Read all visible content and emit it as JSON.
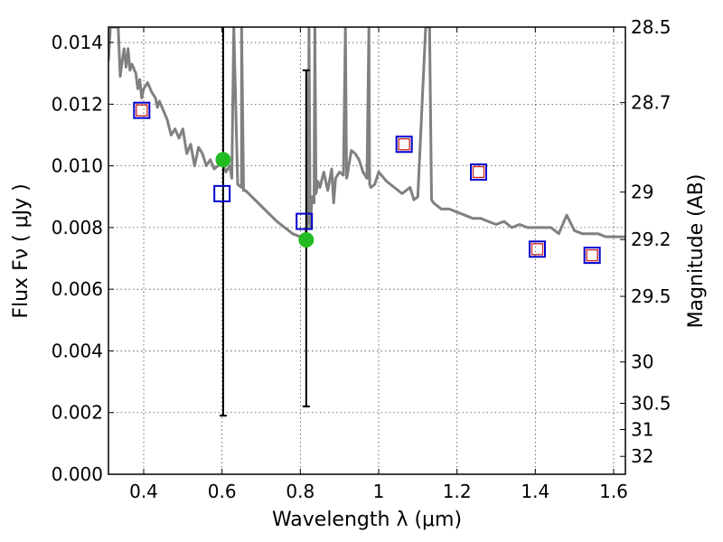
{
  "chart_data": {
    "type": "scatter",
    "title": "",
    "xlabel": "Wavelength  λ (μm)",
    "ylabel": "Flux  Fν  ( μJy )",
    "y2label": "Magnitude (AB)",
    "xlim": [
      0.31,
      1.63
    ],
    "ylim": [
      0.0,
      0.0145
    ],
    "grid": true,
    "x_ticks": [
      0.4,
      0.6,
      0.8,
      1.0,
      1.2,
      1.4,
      1.6
    ],
    "x_tick_labels": [
      "0.4",
      "0.6",
      "0.8",
      "1",
      "1.2",
      "1.4",
      "1.6"
    ],
    "y_ticks": [
      0.0,
      0.002,
      0.004,
      0.006,
      0.008,
      0.01,
      0.012,
      0.014
    ],
    "y_tick_labels": [
      "0.000",
      "0.002",
      "0.004",
      "0.006",
      "0.008",
      "0.010",
      "0.012",
      "0.014"
    ],
    "y2_ticks": [
      {
        "label": "28.5",
        "flux": 0.0145
      },
      {
        "label": "28.7",
        "flux": 0.01205
      },
      {
        "label": "29",
        "flux": 0.00915
      },
      {
        "label": "29.2",
        "flux": 0.00761
      },
      {
        "label": "29.5",
        "flux": 0.00577
      },
      {
        "label": "30",
        "flux": 0.00364
      },
      {
        "label": "30.5",
        "flux": 0.0023
      },
      {
        "label": "31",
        "flux": 0.00145
      },
      {
        "label": "32",
        "flux": 0.00058
      }
    ],
    "series": [
      {
        "name": "model SED",
        "kind": "line",
        "color": "#808080",
        "x": [
          0.31,
          0.315,
          0.32,
          0.325,
          0.33,
          0.335,
          0.34,
          0.345,
          0.35,
          0.355,
          0.36,
          0.365,
          0.37,
          0.38,
          0.385,
          0.39,
          0.395,
          0.4,
          0.41,
          0.42,
          0.43,
          0.435,
          0.44,
          0.45,
          0.46,
          0.47,
          0.48,
          0.49,
          0.5,
          0.51,
          0.52,
          0.53,
          0.54,
          0.55,
          0.56,
          0.57,
          0.58,
          0.59,
          0.6,
          0.61,
          0.62,
          0.625,
          0.63,
          0.64,
          0.65,
          0.65,
          0.655,
          0.66,
          0.7,
          0.74,
          0.78,
          0.8,
          0.81,
          0.815,
          0.82,
          0.822,
          0.825,
          0.83,
          0.835,
          0.837,
          0.84,
          0.845,
          0.85,
          0.86,
          0.87,
          0.88,
          0.885,
          0.89,
          0.9,
          0.91,
          0.915,
          0.918,
          0.92,
          0.93,
          0.94,
          0.95,
          0.96,
          0.97,
          0.975,
          0.977,
          0.98,
          0.99,
          1.0,
          1.02,
          1.04,
          1.06,
          1.08,
          1.09,
          1.1,
          1.12,
          1.13,
          1.135,
          1.14,
          1.16,
          1.18,
          1.2,
          1.22,
          1.24,
          1.26,
          1.28,
          1.3,
          1.32,
          1.34,
          1.36,
          1.38,
          1.4,
          1.42,
          1.44,
          1.46,
          1.48,
          1.5,
          1.52,
          1.54,
          1.56,
          1.58,
          1.6,
          1.63
        ],
        "y": [
          0.0134,
          0.0148,
          0.0145,
          0.0152,
          0.0145,
          0.0148,
          0.0129,
          0.0134,
          0.0138,
          0.0132,
          0.0138,
          0.0131,
          0.0133,
          0.013,
          0.0125,
          0.0128,
          0.0122,
          0.0125,
          0.0127,
          0.0124,
          0.0122,
          0.0119,
          0.0121,
          0.0118,
          0.0115,
          0.011,
          0.0112,
          0.0109,
          0.0112,
          0.0104,
          0.0107,
          0.01,
          0.0106,
          0.0104,
          0.01,
          0.0102,
          0.0099,
          0.01,
          0.0102,
          0.0098,
          0.01,
          0.0096,
          0.015,
          0.0094,
          0.0093,
          0.015,
          0.0092,
          0.0092,
          0.0087,
          0.0082,
          0.0078,
          0.0077,
          0.0076,
          0.0079,
          0.0083,
          0.015,
          0.008,
          0.009,
          0.0088,
          0.015,
          0.0091,
          0.0095,
          0.0093,
          0.0098,
          0.0092,
          0.0099,
          0.0088,
          0.0096,
          0.0098,
          0.0097,
          0.015,
          0.0096,
          0.0097,
          0.0105,
          0.0104,
          0.0102,
          0.0098,
          0.0096,
          0.015,
          0.0094,
          0.0093,
          0.0094,
          0.0098,
          0.0095,
          0.0093,
          0.0091,
          0.0093,
          0.0089,
          0.009,
          0.0145,
          0.015,
          0.0089,
          0.0088,
          0.0086,
          0.0086,
          0.0085,
          0.0084,
          0.0083,
          0.0083,
          0.0082,
          0.0081,
          0.0082,
          0.008,
          0.0081,
          0.008,
          0.008,
          0.008,
          0.008,
          0.0078,
          0.0084,
          0.0079,
          0.0078,
          0.0078,
          0.0078,
          0.0077,
          0.0077,
          0.0077
        ]
      },
      {
        "name": "observed (green)",
        "kind": "points",
        "color": "#22bb22",
        "x": [
          0.603,
          0.815
        ],
        "y": [
          0.0102,
          0.0076
        ],
        "err_low": [
          0.0019,
          0.0022
        ],
        "err_high": [
          0.0147,
          0.0131
        ]
      },
      {
        "name": "model photometry (blue squares)",
        "kind": "squares",
        "color": "#0000cc",
        "x": [
          0.395,
          0.6,
          0.81,
          1.065,
          1.255,
          1.405,
          1.545
        ],
        "y": [
          0.0118,
          0.0091,
          0.0082,
          0.0107,
          0.0098,
          0.0073,
          0.0071
        ]
      },
      {
        "name": "model photometry (red squares)",
        "kind": "squares",
        "color": "#cc2222",
        "x": [
          0.395,
          1.065,
          1.255,
          1.405,
          1.545
        ],
        "y": [
          0.0118,
          0.0107,
          0.0098,
          0.0073,
          0.0071
        ]
      }
    ]
  }
}
